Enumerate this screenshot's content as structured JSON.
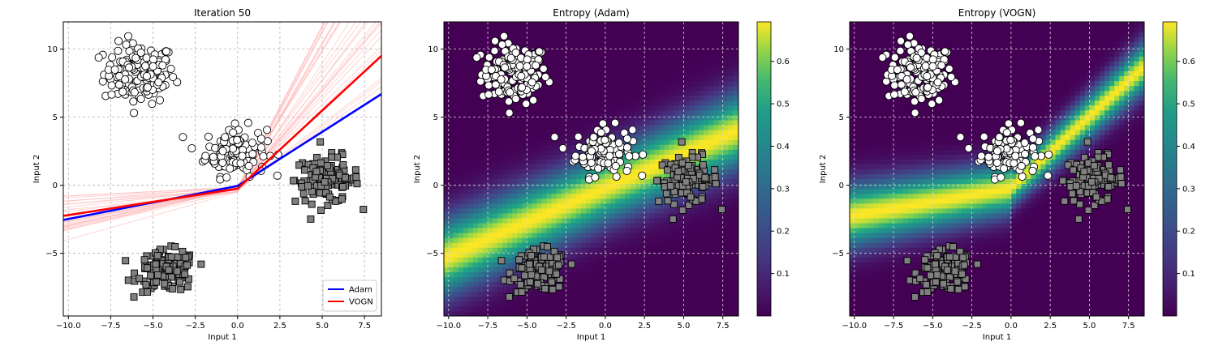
{
  "chart_data": [
    {
      "type": "scatter",
      "title": "Iteration 50",
      "xlabel": "Input 1",
      "ylabel": "Input 2",
      "xlim": [
        -10.3,
        8.5
      ],
      "ylim": [
        -9.6,
        12.0
      ],
      "xticks": [
        -10.0,
        -7.5,
        -5.0,
        -2.5,
        0.0,
        2.5,
        5.0,
        7.5
      ],
      "xtick_labels": [
        "−10.0",
        "−7.5",
        "−5.0",
        "−2.5",
        "0.0",
        "2.5",
        "5.0",
        "7.5"
      ],
      "yticks": [
        -5,
        0,
        5,
        10
      ],
      "ytick_labels": [
        "−5",
        "0",
        "5",
        "10"
      ],
      "grid": true,
      "legend": {
        "placement": "lower-right",
        "entries": [
          {
            "label": "Adam",
            "color": "#0000ff"
          },
          {
            "label": "VOGN",
            "color": "#ff0000"
          }
        ]
      },
      "series": [
        {
          "name": "Adam",
          "kind": "line",
          "color": "#0000ff",
          "x": [
            -10.3,
            0.0,
            8.5
          ],
          "y": [
            -2.55,
            -0.05,
            6.7
          ]
        },
        {
          "name": "VOGN",
          "kind": "line",
          "color": "#ff0000",
          "x": [
            -10.3,
            0.0,
            8.5
          ],
          "y": [
            -2.25,
            -0.25,
            9.5
          ]
        }
      ],
      "clusters": [
        {
          "marker": "circle",
          "color": "#ffffff",
          "cx": -5.8,
          "cy": 8.2,
          "sx": 1.05,
          "sy": 1.1,
          "n": 140
        },
        {
          "marker": "circle",
          "color": "#ffffff",
          "cx": -0.1,
          "cy": 2.5,
          "sx": 0.9,
          "sy": 0.9,
          "n": 120
        },
        {
          "marker": "square",
          "color": "#808080",
          "cx": 5.3,
          "cy": 0.4,
          "sx": 0.95,
          "sy": 0.85,
          "n": 120
        },
        {
          "marker": "square",
          "color": "#808080",
          "cx": -4.2,
          "cy": -6.3,
          "sx": 0.85,
          "sy": 0.75,
          "n": 130
        }
      ],
      "posterior_samples_color": "#ffb0b0"
    },
    {
      "type": "heatmap",
      "title": "Entropy (Adam)",
      "xlabel": "Input 1",
      "ylabel": "Input 2",
      "xlim": [
        -10.3,
        8.5
      ],
      "ylim": [
        -9.6,
        12.0
      ],
      "xticks": [
        -10.0,
        -7.5,
        -5.0,
        -2.5,
        0.0,
        2.5,
        5.0,
        7.5
      ],
      "xtick_labels": [
        "−10.0",
        "−7.5",
        "−5.0",
        "−2.5",
        "0.0",
        "2.5",
        "5.0",
        "7.5"
      ],
      "yticks": [
        -5,
        0,
        5,
        10
      ],
      "ytick_labels": [
        "−5",
        "0",
        "5",
        "10"
      ],
      "grid": true,
      "colormap": "viridis",
      "colorbar": {
        "range": [
          0.0,
          0.693
        ],
        "ticks": [
          0.1,
          0.2,
          0.3,
          0.4,
          0.5,
          0.6
        ],
        "tick_labels": [
          "0.1",
          "0.2",
          "0.3",
          "0.4",
          "0.5",
          "0.6"
        ]
      }
    },
    {
      "type": "heatmap",
      "title": "Entropy (VOGN)",
      "xlabel": "Input 1",
      "ylabel": "Input 2",
      "xlim": [
        -10.3,
        8.5
      ],
      "ylim": [
        -9.6,
        12.0
      ],
      "xticks": [
        -10.0,
        -7.5,
        -5.0,
        -2.5,
        0.0,
        2.5,
        5.0,
        7.5
      ],
      "xtick_labels": [
        "−10.0",
        "−7.5",
        "−5.0",
        "−2.5",
        "0.0",
        "2.5",
        "5.0",
        "7.5"
      ],
      "yticks": [
        -5,
        0,
        5,
        10
      ],
      "ytick_labels": [
        "−5",
        "0",
        "5",
        "10"
      ],
      "grid": true,
      "colormap": "viridis",
      "colorbar": {
        "range": [
          0.0,
          0.693
        ],
        "ticks": [
          0.1,
          0.2,
          0.3,
          0.4,
          0.5,
          0.6
        ],
        "tick_labels": [
          "0.1",
          "0.2",
          "0.3",
          "0.4",
          "0.5",
          "0.6"
        ]
      }
    }
  ]
}
